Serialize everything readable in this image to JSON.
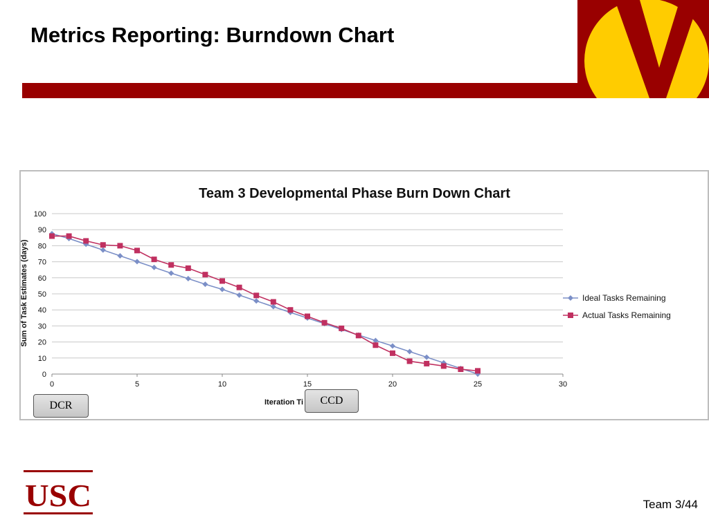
{
  "slide": {
    "title": "Metrics Reporting: Burndown Chart",
    "page_number": "Team 3/44",
    "colors": {
      "accent_bar": "#990000",
      "logo_gold": "#ffcc00"
    }
  },
  "logos": {
    "usc_text": "USC",
    "v_logo_letter": "V"
  },
  "milestones": [
    {
      "label": "DCR"
    },
    {
      "label": "CCD"
    }
  ],
  "chart_data": {
    "type": "line",
    "title": "Team 3 Developmental Phase Burn Down Chart",
    "xlabel": "Iteration Ti",
    "ylabel": "Sum of Task Estimates (days)",
    "xlim": [
      0,
      30
    ],
    "ylim": [
      0,
      100
    ],
    "x_ticks": [
      0,
      5,
      10,
      15,
      20,
      25,
      30
    ],
    "y_ticks": [
      0,
      10,
      20,
      30,
      40,
      50,
      60,
      70,
      80,
      90,
      100
    ],
    "grid": true,
    "legend_position": "right",
    "x": [
      0,
      1,
      2,
      3,
      4,
      5,
      6,
      7,
      8,
      9,
      10,
      11,
      12,
      13,
      14,
      15,
      16,
      17,
      18,
      19,
      20,
      21,
      22,
      23,
      24,
      25
    ],
    "series": [
      {
        "name": "Ideal Tasks Remaining",
        "color": "#7b8fc7",
        "marker": "diamond",
        "values": [
          87.5,
          84.5,
          80.9,
          77.3,
          73.7,
          70.1,
          66.5,
          62.9,
          59.5,
          56.0,
          52.8,
          49.2,
          45.6,
          42.0,
          38.4,
          34.9,
          31.4,
          27.8,
          24.3,
          20.9,
          17.5,
          14.0,
          10.5,
          7.0,
          3.5,
          0.0
        ]
      },
      {
        "name": "Actual Tasks Remaining",
        "color": "#c03060",
        "marker": "square",
        "values": [
          86.0,
          86.0,
          83.0,
          80.5,
          80.0,
          77.0,
          71.5,
          68.0,
          66.0,
          62.0,
          58.0,
          54.0,
          49.0,
          45.0,
          40.0,
          36.0,
          32.0,
          28.5,
          24.0,
          18.0,
          13.0,
          8.0,
          6.5,
          5.0,
          3.0,
          2.0
        ]
      }
    ]
  }
}
